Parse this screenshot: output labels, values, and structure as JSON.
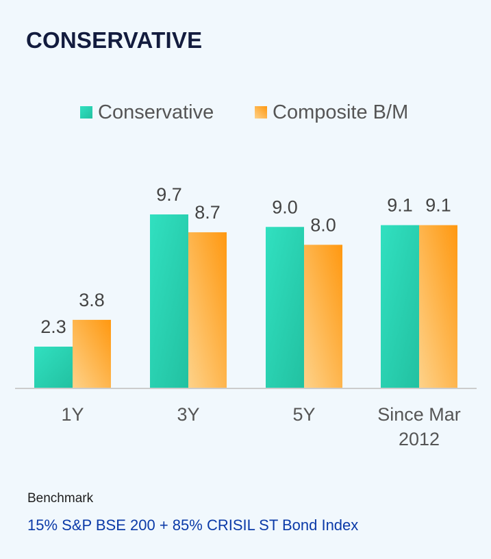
{
  "title": "CONSERVATIVE",
  "benchmark": {
    "label": "Benchmark",
    "value": "15% S&P BSE 200 + 85% CRISIL ST Bond Index"
  },
  "colors": {
    "conservative_light": "#31e0c0",
    "conservative_dark": "#22c1a1",
    "composite_light": "#fdd28a",
    "composite_dark": "#ff9810",
    "axis": "#cccccc",
    "text": "#555555"
  },
  "chart_data": {
    "type": "bar",
    "categories": [
      "1Y",
      "3Y",
      "5Y",
      "Since Mar 2012"
    ],
    "category_lines": [
      [
        "1Y"
      ],
      [
        "3Y"
      ],
      [
        "5Y"
      ],
      [
        "Since Mar",
        "2012"
      ]
    ],
    "series": [
      {
        "name": "Conservative",
        "values": [
          2.3,
          9.7,
          9.0,
          9.1
        ]
      },
      {
        "name": "Composite B/M",
        "values": [
          3.8,
          8.7,
          8.0,
          9.1
        ]
      }
    ],
    "legend": "top",
    "grid": false,
    "ylim": [
      0,
      11.2
    ]
  }
}
